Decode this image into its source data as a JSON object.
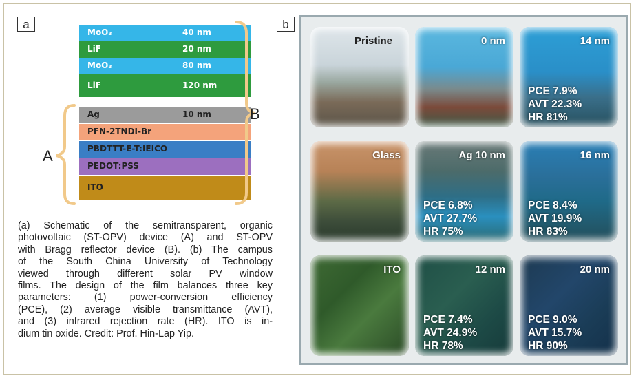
{
  "panel_a": {
    "label": "a",
    "layers_top": [
      {
        "name": "MoO₃",
        "thickness": "40 nm",
        "color": "#35b6e8"
      },
      {
        "name": "LiF",
        "thickness": "20 nm",
        "color": "#2e9b3e"
      },
      {
        "name": "MoO₃",
        "thickness": "80 nm",
        "color": "#35b6e8"
      },
      {
        "name": "LiF",
        "thickness": "120 nm",
        "color": "#2e9b3e"
      }
    ],
    "layers_bottom": [
      {
        "name": "Ag",
        "thickness": "10 nm",
        "color": "#9b9b9b"
      },
      {
        "name": "PFN-2TNDI-Br",
        "thickness": "",
        "color": "#f4a37b"
      },
      {
        "name": "PBDTTT-E-T:IEICO",
        "thickness": "",
        "color": "#3a7ec5"
      },
      {
        "name": "PEDOT:PSS",
        "thickness": "",
        "color": "#9c6fbf"
      },
      {
        "name": "ITO",
        "thickness": "",
        "color": "#c08b19"
      }
    ],
    "brace_a": "A",
    "brace_b": "B",
    "brace_color": "#f1c98a",
    "caption_lines": [
      "(a) Schematic of the semitransparent, organic",
      "photovoltaic (ST-OPV) device (A) and ST-OPV",
      "with Bragg reflector device (B). (b) The campus",
      "of the South China University of Technology",
      "viewed through different solar PV window",
      "films. The design of the film balances three key",
      "parameters: (1) power-conversion efficiency",
      "(PCE), (2) average visible transmittance (AVT),",
      "and (3) infrared rejection rate (HR). ITO is in-",
      "dium tin oxide. Credit: Prof. Hin-Lap Yip."
    ]
  },
  "panel_b": {
    "label": "b",
    "tiles": [
      {
        "title": "Pristine",
        "metrics": []
      },
      {
        "title": "0 nm",
        "metrics": []
      },
      {
        "title": "14 nm",
        "metrics": [
          "PCE 7.9%",
          "AVT 22.3%",
          "HR 81%"
        ]
      },
      {
        "title": "Glass",
        "metrics": []
      },
      {
        "title": "Ag 10 nm",
        "metrics": [
          "PCE 6.8%",
          "AVT 27.7%",
          "HR 75%"
        ]
      },
      {
        "title": "16 nm",
        "metrics": [
          "PCE 8.4%",
          "AVT 19.9%",
          "HR 83%"
        ]
      },
      {
        "title": "ITO",
        "metrics": []
      },
      {
        "title": "12 nm",
        "metrics": [
          "PCE 7.4%",
          "AVT 24.9%",
          "HR 78%"
        ]
      },
      {
        "title": "20 nm",
        "metrics": [
          "PCE 9.0%",
          "AVT 15.7%",
          "HR 90%"
        ]
      }
    ]
  }
}
